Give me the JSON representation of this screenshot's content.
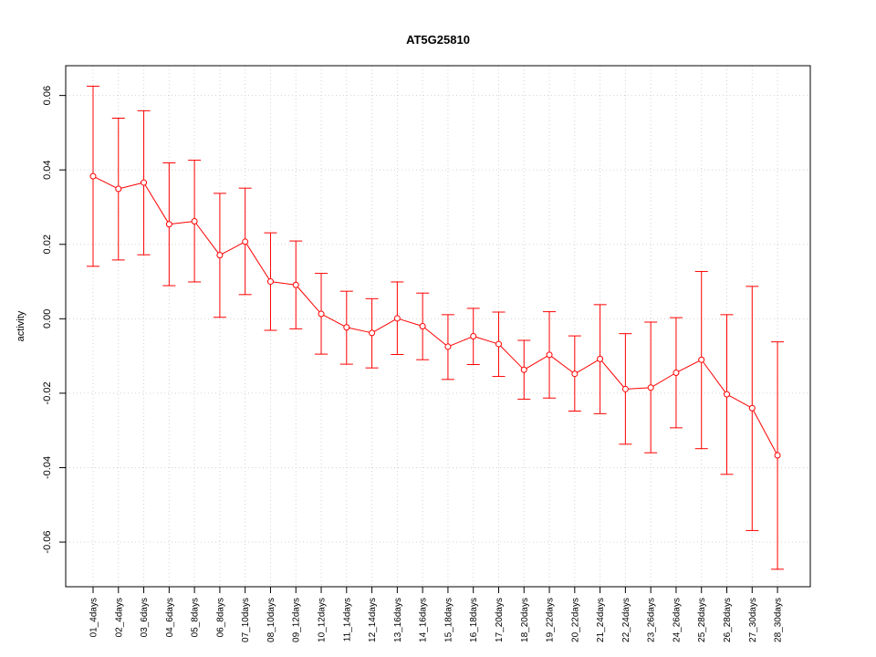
{
  "chart_data": {
    "type": "line",
    "title": "AT5G25810",
    "xlabel": "",
    "ylabel": "activity",
    "ylim": [
      -0.072,
      0.068
    ],
    "grid": true,
    "y_ticks": [
      {
        "value": -0.06,
        "label": "-0.06"
      },
      {
        "value": -0.04,
        "label": "-0.04"
      },
      {
        "value": -0.02,
        "label": "-0.02"
      },
      {
        "value": 0.0,
        "label": "0.00"
      },
      {
        "value": 0.02,
        "label": "0.02"
      },
      {
        "value": 0.04,
        "label": "0.04"
      },
      {
        "value": 0.06,
        "label": "0.06"
      }
    ],
    "categories": [
      "01_4days",
      "02_4days",
      "03_6days",
      "04_6days",
      "05_8days",
      "06_8days",
      "07_10days",
      "08_10days",
      "09_12days",
      "10_12days",
      "11_14days",
      "12_14days",
      "13_16days",
      "14_16days",
      "15_18days",
      "16_18days",
      "17_20days",
      "18_20days",
      "19_22days",
      "20_22days",
      "21_24days",
      "22_24days",
      "23_26days",
      "24_26days",
      "25_28days",
      "26_28days",
      "27_30days",
      "28_30days"
    ],
    "series": [
      {
        "color": "#ff0000",
        "values": [
          0.0383,
          0.0349,
          0.0366,
          0.0254,
          0.0262,
          0.0171,
          0.0207,
          0.01,
          0.0091,
          0.0013,
          -0.0023,
          -0.0038,
          0.0001,
          -0.002,
          -0.0075,
          -0.0047,
          -0.0068,
          -0.0137,
          -0.0097,
          -0.0148,
          -0.0108,
          -0.0189,
          -0.0185,
          -0.0145,
          -0.011,
          -0.0203,
          -0.024,
          -0.0367
        ],
        "upper": [
          0.0625,
          0.0539,
          0.0559,
          0.0419,
          0.0426,
          0.0337,
          0.0351,
          0.0231,
          0.0209,
          0.0122,
          0.0074,
          0.0054,
          0.0099,
          0.0069,
          0.0011,
          0.0028,
          0.0018,
          -0.0058,
          0.0019,
          -0.0046,
          0.0038,
          -0.004,
          -0.0009,
          0.0003,
          0.0127,
          0.0011,
          0.0087,
          -0.0062
        ],
        "lower": [
          0.0141,
          0.0158,
          0.0172,
          0.0089,
          0.0099,
          0.0004,
          0.0065,
          -0.0031,
          -0.0027,
          -0.0095,
          -0.0122,
          -0.0132,
          -0.0096,
          -0.011,
          -0.0163,
          -0.0123,
          -0.0155,
          -0.0216,
          -0.0213,
          -0.0248,
          -0.0255,
          -0.0337,
          -0.036,
          -0.0293,
          -0.0349,
          -0.0418,
          -0.0569,
          -0.0673
        ]
      }
    ]
  }
}
